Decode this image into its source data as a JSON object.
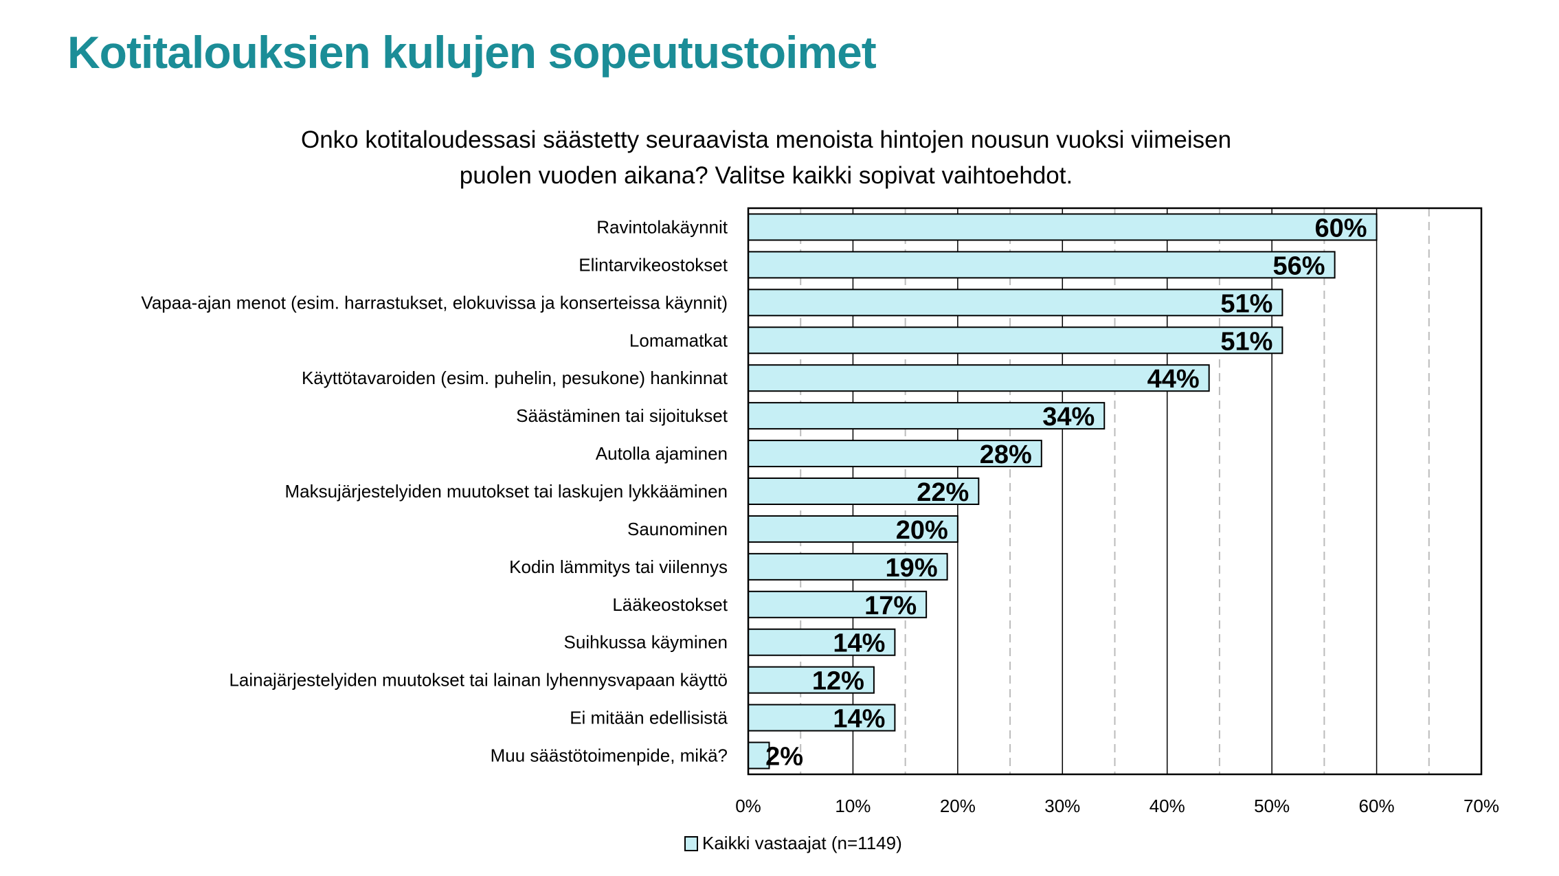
{
  "chart_data": {
    "type": "bar",
    "orientation": "horizontal",
    "title": "Kotitalouksien kulujen sopeutustoimet",
    "subtitle": [
      "Onko kotitaloudessasi säästetty seuraavista menoista hintojen nousun vuoksi viimeisen",
      "puolen vuoden aikana? Valitse kaikki sopivat vaihtoehdot."
    ],
    "categories": [
      "Ravintolakäynnit",
      "Elintarvikeostokset",
      "Vapaa-ajan menot (esim. harrastukset, elokuvissa ja konserteissa käynnit)",
      "Lomamatkat",
      "Käyttötavaroiden (esim. puhelin, pesukone) hankinnat",
      "Säästäminen tai sijoitukset",
      "Autolla ajaminen",
      "Maksujärjestelyiden muutokset tai laskujen lykkääminen",
      "Saunominen",
      "Kodin lämmitys tai viilennys",
      "Lääkeostokset",
      "Suihkussa käyminen",
      "Lainajärjestelyiden muutokset tai lainan lyhennysvapaan käyttö",
      "Ei mitään edellisistä",
      "Muu säästötoimenpide, mikä?"
    ],
    "series": [
      {
        "name": "Kaikki vastaajat (n=1149)",
        "values": [
          60,
          56,
          51,
          51,
          44,
          34,
          28,
          22,
          20,
          19,
          17,
          14,
          12,
          14,
          2
        ],
        "labels": [
          "60%",
          "56%",
          "51%",
          "51%",
          "44%",
          "34%",
          "28%",
          "22%",
          "20%",
          "19%",
          "17%",
          "14%",
          "12%",
          "14%",
          "2%"
        ]
      }
    ],
    "xlim": [
      0,
      70
    ],
    "xticks": [
      "0%",
      "10%",
      "20%",
      "30%",
      "40%",
      "50%",
      "60%",
      "70%"
    ],
    "grid": "vertical solid major every 10%, dashed minor every 5%",
    "legend": "bottom",
    "colors": {
      "bar_fill": "#c6eff5",
      "bar_edge": "#000000",
      "title": "#1b8d97"
    }
  }
}
